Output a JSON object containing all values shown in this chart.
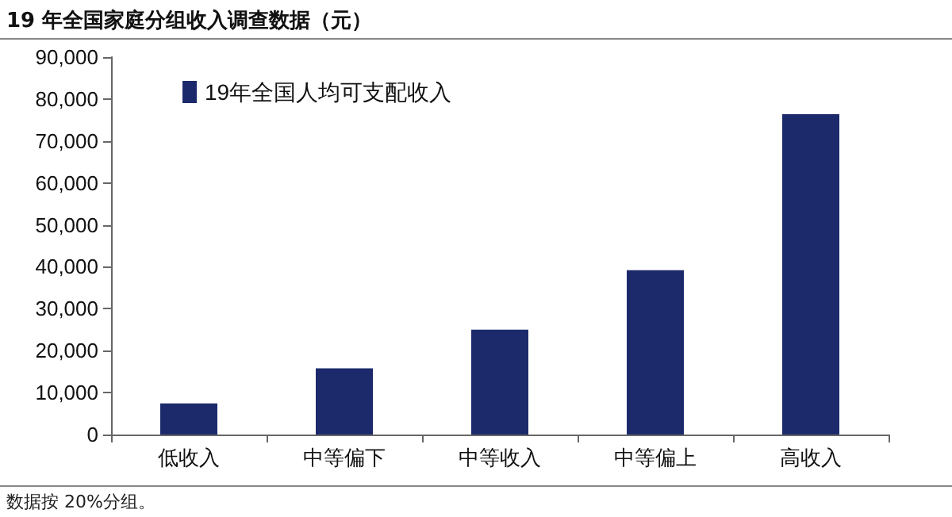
{
  "chart_data": {
    "type": "bar",
    "title": "19 年全国家庭分组收入调查数据（元）",
    "categories": [
      "低收入",
      "中等偏下",
      "中等收入",
      "中等偏上",
      "高收入"
    ],
    "series": [
      {
        "name": "19年全国人均可支配收入",
        "color": "#1c2a6b",
        "values": [
          7400,
          15800,
          25000,
          39200,
          76400
        ]
      }
    ],
    "ylim": [
      0,
      90000
    ],
    "yticks": [
      {
        "value": 0,
        "label": "0"
      },
      {
        "value": 10000,
        "label": "10,000"
      },
      {
        "value": 20000,
        "label": "20,000"
      },
      {
        "value": 30000,
        "label": "30,000"
      },
      {
        "value": 40000,
        "label": "40,000"
      },
      {
        "value": 50000,
        "label": "50,000"
      },
      {
        "value": 60000,
        "label": "60,000"
      },
      {
        "value": 70000,
        "label": "70,000"
      },
      {
        "value": 80000,
        "label": "80,000"
      },
      {
        "value": 90000,
        "label": "90,000"
      }
    ],
    "grid": false,
    "legend": "top left",
    "annotations": [
      "数据按 20%分组。"
    ]
  }
}
